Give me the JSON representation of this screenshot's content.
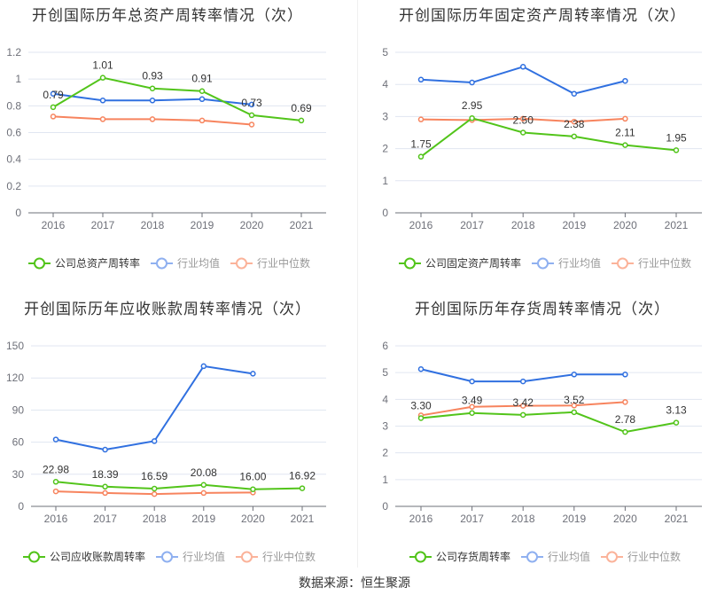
{
  "source": "数据来源：恒生聚源",
  "colors": {
    "company": "#52c41a",
    "average": "#3070e0",
    "median": "#f7845e",
    "avg_legend": "#8fb0f0",
    "median_legend": "#fbb39a"
  },
  "chart_data": [
    {
      "type": "line",
      "title": "开创国际历年总资产周转率情况（次）",
      "categories": [
        "2016",
        "2017",
        "2018",
        "2019",
        "2020",
        "2021"
      ],
      "ylim": [
        0,
        1.2
      ],
      "yticks": [
        "0",
        "0.2",
        "0.4",
        "0.6",
        "0.8",
        "1",
        "1.2"
      ],
      "grid": true,
      "legend": "bottom",
      "series": [
        {
          "name": "公司总资产周转率",
          "values": [
            0.79,
            1.01,
            0.93,
            0.91,
            0.73,
            0.69
          ],
          "labels": [
            "0.79",
            "1.01",
            "0.93",
            "0.91",
            "0.73",
            "0.69"
          ]
        },
        {
          "name": "行业均值",
          "values": [
            0.89,
            0.84,
            0.84,
            0.85,
            0.81,
            null
          ]
        },
        {
          "name": "行业中位数",
          "values": [
            0.72,
            0.7,
            0.7,
            0.69,
            0.66,
            null
          ]
        }
      ]
    },
    {
      "type": "line",
      "title": "开创国际历年固定资产周转率情况（次）",
      "categories": [
        "2016",
        "2017",
        "2018",
        "2019",
        "2020",
        "2021"
      ],
      "ylim": [
        0,
        5
      ],
      "yticks": [
        "0",
        "1",
        "2",
        "3",
        "4",
        "5"
      ],
      "grid": true,
      "legend": "bottom",
      "series": [
        {
          "name": "公司固定资产周转率",
          "values": [
            1.75,
            2.95,
            2.5,
            2.38,
            2.11,
            1.95
          ],
          "labels": [
            "1.75",
            "2.95",
            "2.50",
            "2.38",
            "2.11",
            "1.95"
          ]
        },
        {
          "name": "行业均值",
          "values": [
            4.15,
            4.06,
            4.55,
            3.71,
            4.11,
            null
          ]
        },
        {
          "name": "行业中位数",
          "values": [
            2.91,
            2.89,
            2.93,
            2.84,
            2.93,
            null
          ]
        }
      ]
    },
    {
      "type": "line",
      "title": "开创国际历年应收账款周转率情况（次）",
      "categories": [
        "2016",
        "2017",
        "2018",
        "2019",
        "2020",
        "2021"
      ],
      "ylim": [
        0,
        150
      ],
      "yticks": [
        "0",
        "30",
        "60",
        "90",
        "120",
        "150"
      ],
      "grid": true,
      "legend": "bottom",
      "series": [
        {
          "name": "公司应收账款周转率",
          "values": [
            22.98,
            18.39,
            16.59,
            20.08,
            16.0,
            16.92
          ],
          "labels": [
            "22.98",
            "18.39",
            "16.59",
            "20.08",
            "16.00",
            "16.92"
          ]
        },
        {
          "name": "行业均值",
          "values": [
            62.5,
            53,
            61,
            131,
            124,
            null
          ]
        },
        {
          "name": "行业中位数",
          "values": [
            14,
            12.5,
            11.5,
            12.5,
            13,
            null
          ]
        }
      ]
    },
    {
      "type": "line",
      "title": "开创国际历年存货周转率情况（次）",
      "categories": [
        "2016",
        "2017",
        "2018",
        "2019",
        "2020",
        "2021"
      ],
      "ylim": [
        0,
        6
      ],
      "yticks": [
        "0",
        "1",
        "2",
        "3",
        "4",
        "5",
        "6"
      ],
      "grid": true,
      "legend": "bottom",
      "series": [
        {
          "name": "公司存货周转率",
          "values": [
            3.3,
            3.49,
            3.42,
            3.52,
            2.78,
            3.13
          ],
          "labels": [
            "3.30",
            "3.49",
            "3.42",
            "3.52",
            "2.78",
            "3.13"
          ]
        },
        {
          "name": "行业均值",
          "values": [
            5.13,
            4.67,
            4.67,
            4.93,
            4.93,
            null
          ]
        },
        {
          "name": "行业中位数",
          "values": [
            3.4,
            3.72,
            3.76,
            3.77,
            3.9,
            null
          ]
        }
      ]
    }
  ]
}
